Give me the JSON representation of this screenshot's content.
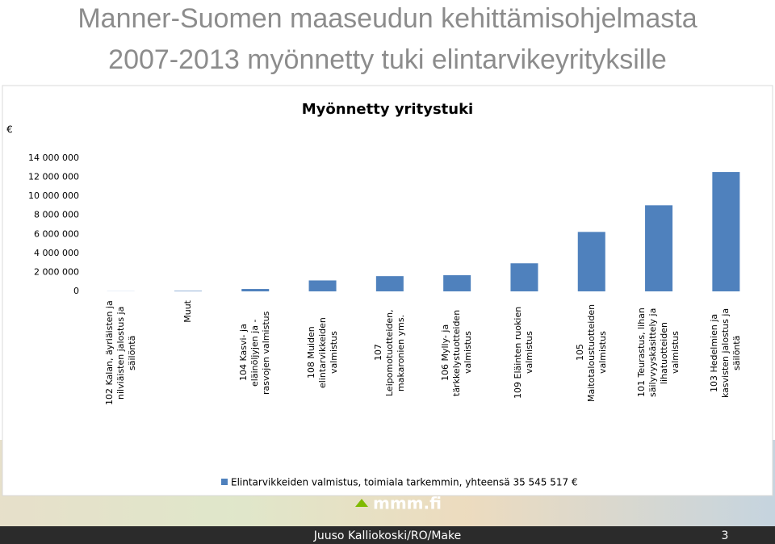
{
  "slide": {
    "title": [
      "Manner-Suomen maaseudun kehittämisohjelmasta",
      "2007-2013 myönnetty tuki elintarvikeyrityksille"
    ],
    "logo": "mmm.fi",
    "footer": "Juuso Kalliokoski/RO/Make",
    "page_number": 3
  },
  "chart_data": {
    "type": "bar",
    "title": "Myönnetty yritystuki",
    "y_label": "€",
    "categories": [
      "102 Kalan, äyriäisten ja nilviäisten jalostus ja säilöntä",
      "Muut",
      "104 Kasvi- ja eläinöljyjen ja -rasvojen valmistus",
      "108 Muiden elintarvikkeiden valmistus",
      "107 Leipomotuotteiden, makaronien yms.",
      "106 Mylly- ja tärkkelystuotteiden valmistus",
      "109 Eläinten ruokien valmistus",
      "105 Maitotaloustuotteiden valmistus",
      "101 Teurastus, lihan säilyvyyskäsittely ja lihatuotteiden valmistus",
      "103 Hedelmien ja kasvisten jalostus ja säilöntä"
    ],
    "series": [
      {
        "name": "Elintarvikkeiden valmistus, toimiala tarkemmin, yhteensä 35 545 517 €",
        "color": "#4f81bd",
        "values": [
          10000,
          50000,
          250000,
          1150000,
          1600000,
          1700000,
          2950000,
          6250000,
          9050000,
          12550000
        ]
      }
    ],
    "ylim": [
      0,
      14000000
    ],
    "yticks": [
      0,
      {
        "value": 2000000,
        "label": "2 000 000"
      },
      {
        "value": 4000000,
        "label": "4 000 000"
      },
      {
        "value": 6000000,
        "label": "6 000 000"
      },
      {
        "value": 8000000,
        "label": "8 000 000"
      },
      {
        "value": 10000000,
        "label": "10 000 000"
      },
      {
        "value": 12000000,
        "label": "12 000 000"
      },
      {
        "value": 14000000,
        "label": "14 000 000"
      }
    ],
    "grid": false
  }
}
